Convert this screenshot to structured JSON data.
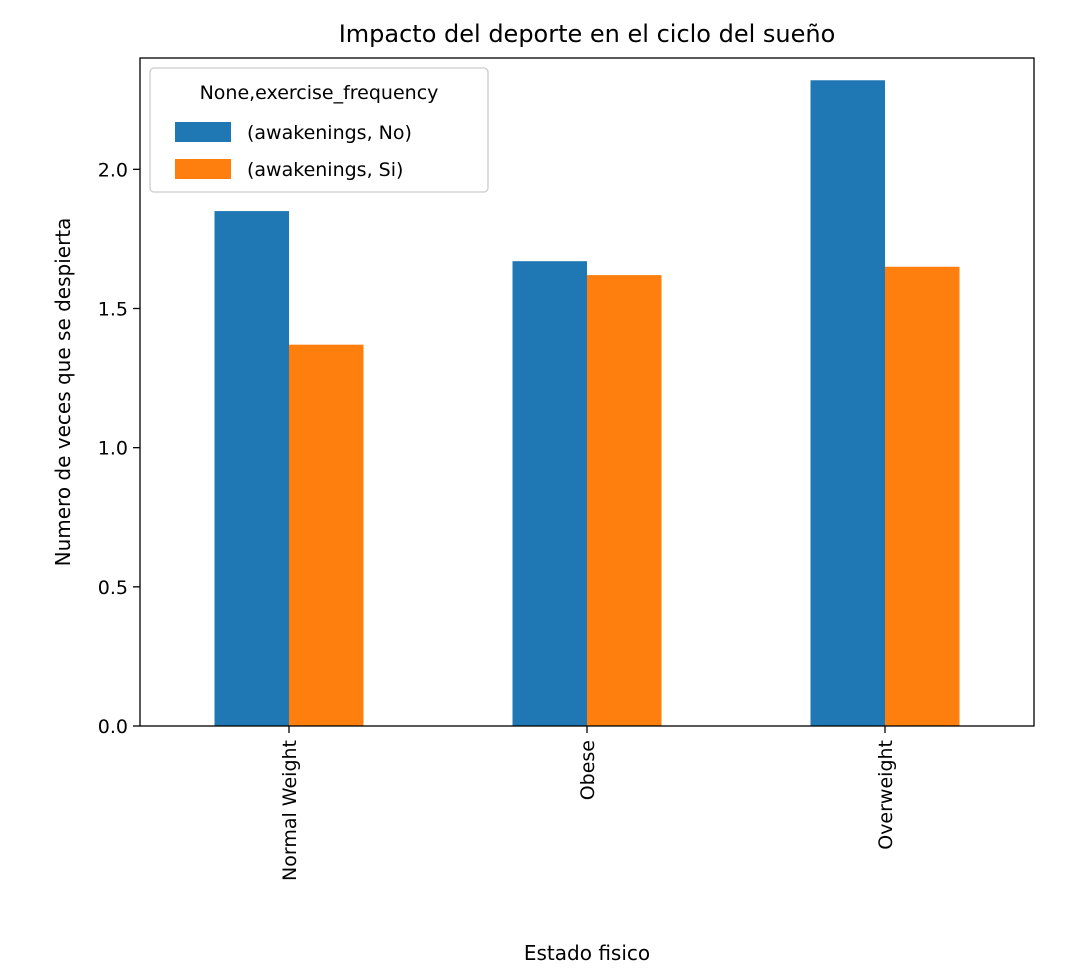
{
  "chart_data": {
    "type": "bar",
    "title": "Impacto del deporte en el ciclo del sueño",
    "xlabel": "Estado fisico",
    "ylabel": "Numero de veces que se despierta",
    "categories": [
      "Normal Weight",
      "Obese",
      "Overweight"
    ],
    "series": [
      {
        "name": "(awakenings, No)",
        "values": [
          1.85,
          1.67,
          2.32
        ],
        "color": "#1f77b4"
      },
      {
        "name": "(awakenings, Si)",
        "values": [
          1.37,
          1.62,
          1.65
        ],
        "color": "#ff7f0e"
      }
    ],
    "ylim": [
      0,
      2.4
    ],
    "yticks": [
      "0.0",
      "0.5",
      "1.0",
      "1.5",
      "2.0"
    ],
    "grid": false,
    "legend": {
      "title": "None,exercise_frequency",
      "placement": "top-left"
    }
  }
}
